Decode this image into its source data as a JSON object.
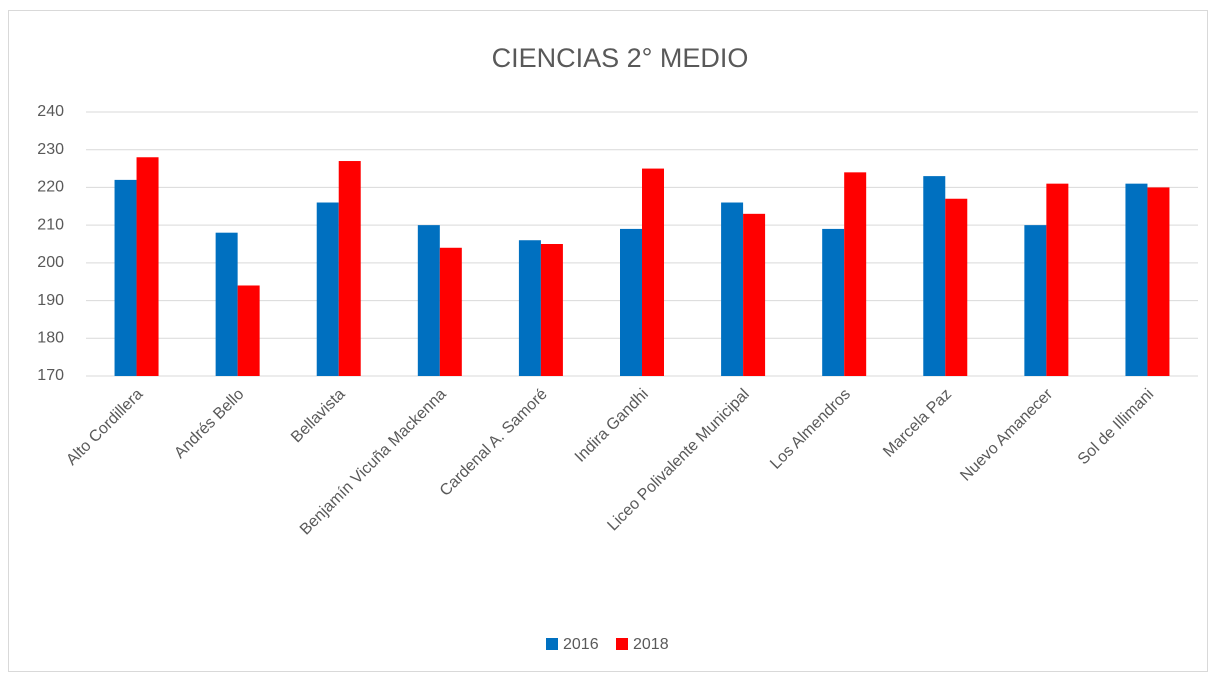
{
  "chart_data": {
    "type": "bar",
    "title": "CIENCIAS 2° MEDIO",
    "categories": [
      "Alto Cordillera",
      "Andrés Bello",
      "Bellavista",
      "Benjamín Vicuña Mackenna",
      "Cardenal A. Samoré",
      "Indira Gandhi",
      "Liceo Polivalente Municipal",
      "Los Almendros",
      "Marcela Paz",
      "Nuevo Amanecer",
      "Sol de Illimani"
    ],
    "series": [
      {
        "name": "2016",
        "color": "#0070c0",
        "values": [
          222,
          208,
          216,
          210,
          206,
          209,
          216,
          209,
          223,
          210,
          221
        ]
      },
      {
        "name": "2018",
        "color": "#ff0000",
        "values": [
          228,
          194,
          227,
          204,
          205,
          225,
          213,
          224,
          217,
          221,
          220
        ]
      }
    ],
    "ylim": [
      170,
      240
    ],
    "yticks": [
      170,
      180,
      190,
      200,
      210,
      220,
      230,
      240
    ],
    "grid": true,
    "legend": "bottom"
  }
}
